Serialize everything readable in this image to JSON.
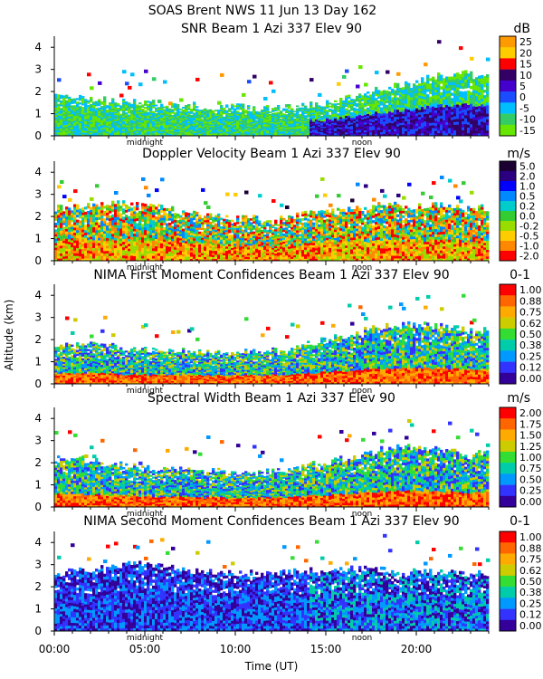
{
  "header": {
    "line1": "SOAS Brent NWS  11 Jun 13 Day 162"
  },
  "xaxis": {
    "label": "Time (UT)",
    "ticks": [
      "00:00",
      "05:00",
      "10:00",
      "15:00",
      "20:00"
    ],
    "tick_hours": [
      0,
      5,
      10,
      15,
      20
    ],
    "range": [
      0,
      24
    ],
    "marker_midnight": "midnight",
    "marker_noon": "noon",
    "midnight_hour": 5,
    "noon_hour": 17
  },
  "yaxis": {
    "label": "Altitude (km)",
    "range": [
      0,
      4.5
    ],
    "ticks": [
      "0",
      "1",
      "2",
      "3",
      "4"
    ]
  },
  "chart_data": [
    {
      "type": "heatmap",
      "title": "SNR Beam 1 Azi 337 Elev 90",
      "unit": "dB",
      "colorbar": [
        "25",
        "20",
        "15",
        "10",
        "5",
        "0",
        "-5",
        "-10",
        "-15"
      ],
      "colors": [
        "#ff9a00",
        "#ffcc00",
        "#ff0000",
        "#330066",
        "#4400cc",
        "#1a4dff",
        "#00bfff",
        "#33cc66",
        "#66e600"
      ],
      "profile": [
        1.9,
        1.8,
        1.7,
        1.6,
        1.5,
        1.5,
        1.4,
        1.4,
        1.35,
        1.3,
        1.3,
        1.25,
        1.25,
        1.3,
        1.4,
        1.5,
        1.7,
        1.9,
        2.1,
        2.3,
        2.5,
        2.7,
        2.8,
        2.8
      ]
    },
    {
      "type": "heatmap",
      "title": "Doppler Velocity Beam 1 Azi 337 Elev 90",
      "unit": "m/s",
      "colorbar": [
        "5.0",
        "2.0",
        "1.0",
        "0.5",
        "0.2",
        "0.0",
        "-0.2",
        "-0.5",
        "-1.0",
        "-2.0"
      ],
      "colors": [
        "#1a0033",
        "#2a0080",
        "#0000ff",
        "#0088ff",
        "#00cccc",
        "#33cc33",
        "#99dd00",
        "#ffcc00",
        "#ff8800",
        "#ff0000"
      ],
      "profile": [
        2.4,
        2.4,
        2.5,
        2.6,
        2.6,
        2.5,
        2.4,
        2.2,
        2.1,
        2.0,
        1.9,
        1.9,
        1.8,
        2.0,
        2.1,
        2.2,
        2.3,
        2.4,
        2.5,
        2.5,
        2.5,
        2.5,
        2.5,
        2.4
      ]
    },
    {
      "type": "heatmap",
      "title": "NIMA First Moment Confidences Beam 1 Azi 337 Elev 90",
      "unit": "0-1",
      "colorbar": [
        "1.00",
        "0.88",
        "0.75",
        "0.62",
        "0.50",
        "0.38",
        "0.25",
        "0.12",
        "0.00"
      ],
      "colors": [
        "#ff0000",
        "#ff6600",
        "#ffaa00",
        "#cccc00",
        "#33dd33",
        "#00ccaa",
        "#0099ff",
        "#3333ff",
        "#330099"
      ],
      "profile": [
        1.8,
        1.8,
        1.8,
        1.7,
        1.6,
        1.5,
        1.5,
        1.5,
        1.45,
        1.4,
        1.4,
        1.45,
        1.5,
        1.6,
        1.8,
        2.0,
        2.2,
        2.4,
        2.6,
        2.7,
        2.7,
        2.6,
        2.5,
        2.4
      ]
    },
    {
      "type": "heatmap",
      "title": "Spectral Width Beam 1 Azi 337 Elev 90",
      "unit": "m/s",
      "colorbar": [
        "2.00",
        "1.75",
        "1.50",
        "1.25",
        "1.00",
        "0.75",
        "0.50",
        "0.25",
        "0.00"
      ],
      "colors": [
        "#ff0000",
        "#ff6600",
        "#ffaa00",
        "#cccc00",
        "#33dd33",
        "#00ccaa",
        "#0099ff",
        "#3333ff",
        "#330099"
      ],
      "profile": [
        2.2,
        2.2,
        2.1,
        2.0,
        1.9,
        1.8,
        1.7,
        1.7,
        1.6,
        1.6,
        1.5,
        1.5,
        1.6,
        1.7,
        1.9,
        2.0,
        2.2,
        2.4,
        2.6,
        2.7,
        2.7,
        2.6,
        2.5,
        2.4
      ]
    },
    {
      "type": "heatmap",
      "title": "NIMA Second Moment Confidences Beam 1 Azi 337 Elev 90",
      "unit": "0-1",
      "colorbar": [
        "1.00",
        "0.88",
        "0.75",
        "0.62",
        "0.50",
        "0.38",
        "0.25",
        "0.12",
        "0.00"
      ],
      "colors": [
        "#ff0000",
        "#ff6600",
        "#ffaa00",
        "#cccc00",
        "#33dd33",
        "#00ccaa",
        "#0099ff",
        "#3333ff",
        "#330099"
      ],
      "profile": [
        2.6,
        2.7,
        2.8,
        2.9,
        3.0,
        3.0,
        2.9,
        2.8,
        2.7,
        2.6,
        2.6,
        2.6,
        2.6,
        2.7,
        2.7,
        2.8,
        2.8,
        2.8,
        2.8,
        2.7,
        2.7,
        2.7,
        2.6,
        2.6
      ]
    }
  ]
}
